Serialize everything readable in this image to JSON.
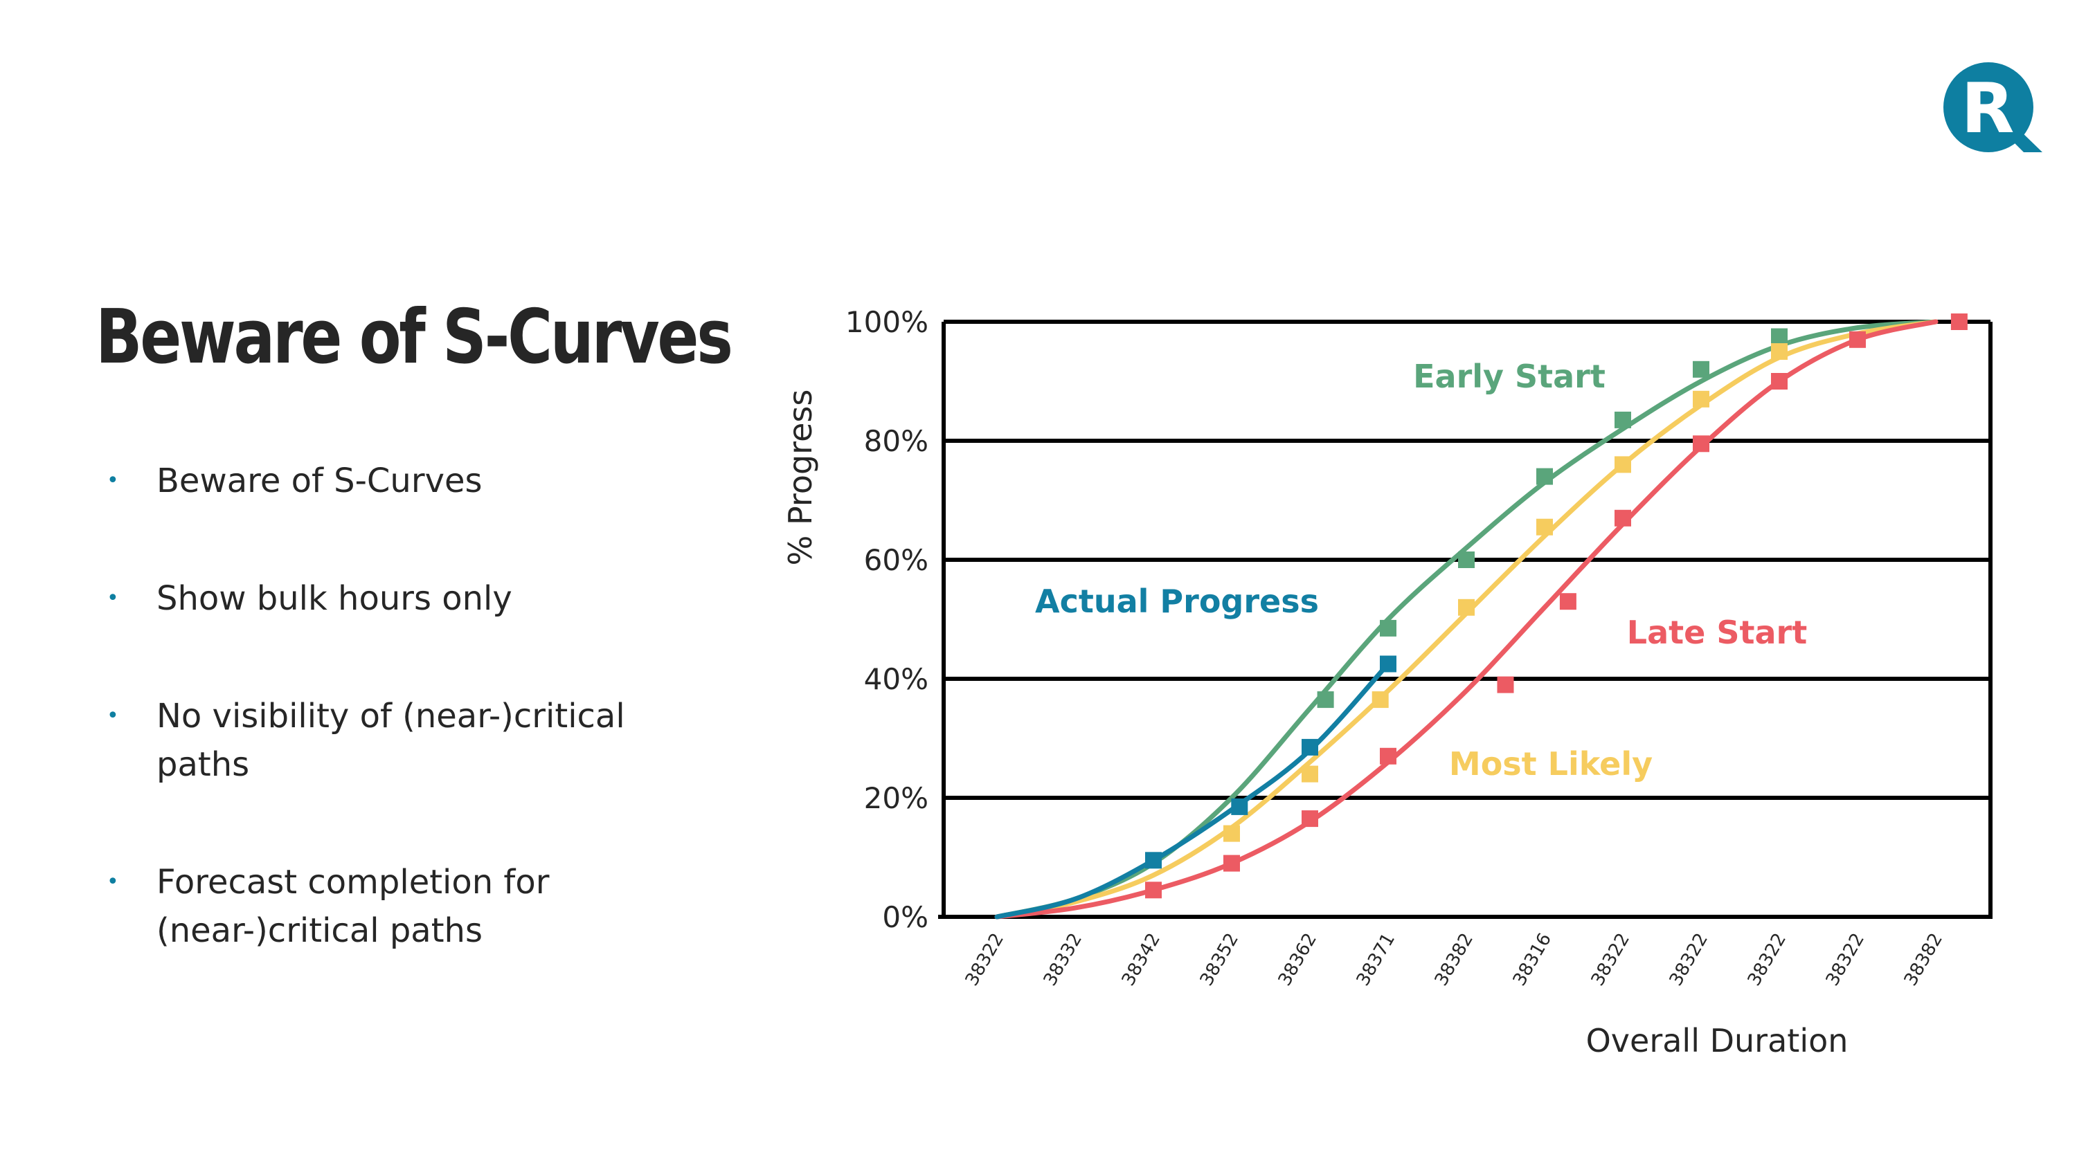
{
  "slide": {
    "title": "Beware of S-Curves",
    "logo_letter": "R",
    "bullets": [
      "Beware of S-Curves",
      "Show bulk hours only",
      "No visibility of (near-)critical paths",
      "Forecast completion for (near-)critical paths"
    ]
  },
  "colors": {
    "brand": "#0e7fa1",
    "early_start": "#5aa57b",
    "most_likely": "#f6cc5e",
    "late_start": "#ec5b63",
    "actual_progress": "#127fa3",
    "text": "#262626"
  },
  "chart_data": {
    "type": "line",
    "xlabel": "Overall Duration",
    "ylabel": "% Progress",
    "categories": [
      "38322",
      "38332",
      "38342",
      "38352",
      "38362",
      "38371",
      "38382",
      "38316",
      "38322",
      "38322",
      "38322",
      "38322",
      "38382"
    ],
    "ylim": [
      0,
      100
    ],
    "yticks": [
      "0%",
      "20%",
      "40%",
      "60%",
      "80%",
      "100%"
    ],
    "grid": "horizontal",
    "series": [
      {
        "name": "Early Start",
        "color": "#5aa57b",
        "curve": [
          [
            0,
            0
          ],
          [
            1,
            3
          ],
          [
            2,
            9
          ],
          [
            3,
            20
          ],
          [
            4,
            35
          ],
          [
            5,
            50
          ],
          [
            6,
            62
          ],
          [
            7,
            73
          ],
          [
            8,
            82
          ],
          [
            9,
            90
          ],
          [
            10,
            96
          ],
          [
            11,
            99
          ],
          [
            12,
            100
          ]
        ],
        "markers": [
          [
            5,
            48.5
          ],
          [
            6,
            60
          ],
          [
            7,
            74
          ],
          [
            8,
            83.5
          ],
          [
            9,
            92
          ],
          [
            10,
            97.5
          ]
        ],
        "extra_markers": [
          [
            4.2,
            36.5
          ]
        ]
      },
      {
        "name": "Most Likely",
        "color": "#f6cc5e",
        "curve": [
          [
            0,
            0
          ],
          [
            1,
            2.5
          ],
          [
            2,
            7
          ],
          [
            3,
            15
          ],
          [
            4,
            26
          ],
          [
            5,
            38
          ],
          [
            6,
            51
          ],
          [
            7,
            64
          ],
          [
            8,
            76
          ],
          [
            9,
            86
          ],
          [
            10,
            94
          ],
          [
            11,
            98
          ],
          [
            12,
            100
          ]
        ],
        "markers": [
          [
            3,
            14
          ],
          [
            4,
            24
          ],
          [
            4.9,
            36.5
          ],
          [
            6,
            52
          ],
          [
            7,
            65.5
          ],
          [
            8,
            76
          ],
          [
            9,
            87
          ],
          [
            10,
            95
          ]
        ]
      },
      {
        "name": "Late Start",
        "color": "#ec5b63",
        "curve": [
          [
            0,
            0
          ],
          [
            1,
            1.5
          ],
          [
            2,
            4.5
          ],
          [
            3,
            9
          ],
          [
            4,
            16
          ],
          [
            5,
            26
          ],
          [
            6,
            38
          ],
          [
            7,
            52
          ],
          [
            8,
            66
          ],
          [
            9,
            79
          ],
          [
            10,
            90
          ],
          [
            11,
            97
          ],
          [
            12,
            100
          ]
        ],
        "markers": [
          [
            2,
            4.5
          ],
          [
            3,
            9
          ],
          [
            4,
            16.5
          ],
          [
            5,
            27
          ],
          [
            6.5,
            39
          ],
          [
            7.3,
            53
          ],
          [
            8,
            67
          ],
          [
            9,
            79.5
          ],
          [
            10,
            90
          ],
          [
            11,
            97
          ],
          [
            12.3,
            100
          ]
        ]
      },
      {
        "name": "Actual Progress",
        "color": "#127fa3",
        "curve": [
          [
            0,
            0
          ],
          [
            1,
            3
          ],
          [
            2,
            9.5
          ],
          [
            3,
            18
          ],
          [
            4,
            28
          ],
          [
            5,
            42.5
          ]
        ],
        "markers": [
          [
            2,
            9.5
          ],
          [
            3.1,
            18.5
          ],
          [
            4,
            28.5
          ],
          [
            5,
            42.5
          ]
        ]
      }
    ]
  }
}
